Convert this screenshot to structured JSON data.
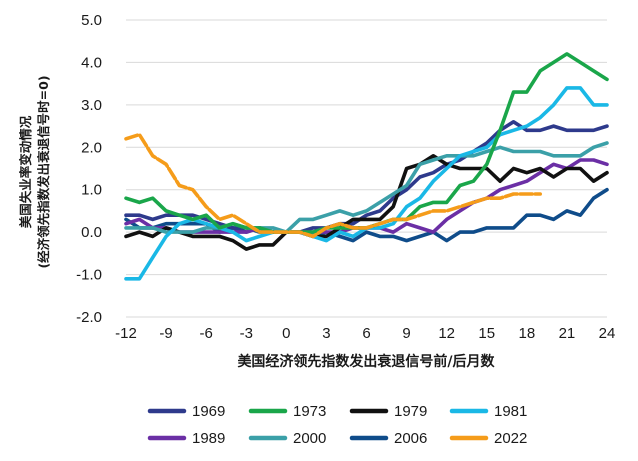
{
  "chart_data": {
    "type": "line",
    "xlabel": "美国经济领先指数发出衰退信号前/后月数",
    "ylabel_line1": "美国失业率变动情况",
    "ylabel_line2": "(经济领先指数发出衰退信号时=0)",
    "xlim": [
      -12,
      24
    ],
    "ylim": [
      -2.0,
      5.0
    ],
    "x_ticks": [
      -12,
      -9,
      -6,
      -3,
      0,
      3,
      6,
      9,
      12,
      15,
      18,
      21,
      24
    ],
    "y_ticks": [
      -2.0,
      -1.0,
      0.0,
      1.0,
      2.0,
      3.0,
      4.0,
      5.0
    ],
    "x_tick_labels": [
      "-12",
      "-9",
      "-6",
      "-3",
      "0",
      "3",
      "6",
      "9",
      "12",
      "15",
      "18",
      "21",
      "24"
    ],
    "y_tick_labels": [
      "-2.0",
      "-1.0",
      "0.0",
      "1.0",
      "2.0",
      "3.0",
      "4.0",
      "5.0"
    ],
    "grid": "horizontal",
    "legend_position": "bottom",
    "x": [
      -12,
      -11,
      -10,
      -9,
      -8,
      -7,
      -6,
      -5,
      -4,
      -3,
      -2,
      -1,
      0,
      1,
      2,
      3,
      4,
      5,
      6,
      7,
      8,
      9,
      10,
      11,
      12,
      13,
      14,
      15,
      16,
      17,
      18,
      19,
      20,
      21,
      22,
      23,
      24
    ],
    "series": [
      {
        "name": "1969",
        "color": "#2e3a8c",
        "values": [
          0.4,
          0.4,
          0.3,
          0.4,
          0.4,
          0.4,
          0.3,
          0.2,
          0.1,
          0.0,
          0.1,
          0.0,
          0.0,
          0.0,
          0.1,
          0.1,
          0.2,
          0.2,
          0.4,
          0.5,
          0.8,
          1.0,
          1.3,
          1.4,
          1.6,
          1.7,
          1.9,
          2.1,
          2.4,
          2.6,
          2.4,
          2.4,
          2.5,
          2.4,
          2.4,
          2.4,
          2.5
        ]
      },
      {
        "name": "1973",
        "color": "#1aa64a",
        "values": [
          0.8,
          0.7,
          0.8,
          0.5,
          0.4,
          0.3,
          0.4,
          0.1,
          0.2,
          0.1,
          0.1,
          0.0,
          0.0,
          0.0,
          0.0,
          0.1,
          0.1,
          0.1,
          0.1,
          0.2,
          0.3,
          0.3,
          0.6,
          0.7,
          0.7,
          1.1,
          1.2,
          1.6,
          2.4,
          3.3,
          3.3,
          3.8,
          4.0,
          4.2,
          4.0,
          3.8,
          3.6
        ]
      },
      {
        "name": "1979",
        "color": "#111111",
        "values": [
          -0.1,
          0.0,
          -0.1,
          0.1,
          0.0,
          -0.1,
          -0.1,
          -0.1,
          -0.2,
          -0.4,
          -0.3,
          -0.3,
          0.0,
          0.0,
          -0.1,
          -0.1,
          0.1,
          0.3,
          0.3,
          0.3,
          0.6,
          1.5,
          1.6,
          1.8,
          1.6,
          1.5,
          1.5,
          1.5,
          1.2,
          1.5,
          1.4,
          1.5,
          1.3,
          1.5,
          1.5,
          1.2,
          1.4
        ]
      },
      {
        "name": "1981",
        "color": "#1ab8e6",
        "values": [
          -1.1,
          -1.1,
          -0.6,
          -0.1,
          0.2,
          0.3,
          0.2,
          0.1,
          0.0,
          -0.2,
          -0.1,
          0.0,
          0.0,
          0.0,
          -0.1,
          -0.2,
          0.0,
          -0.1,
          0.1,
          0.1,
          0.2,
          0.6,
          0.8,
          1.2,
          1.5,
          1.8,
          1.9,
          2.0,
          2.3,
          2.4,
          2.5,
          2.7,
          3.0,
          3.4,
          3.4,
          3.0,
          3.0
        ]
      },
      {
        "name": "1989",
        "color": "#6b2fa5",
        "values": [
          0.2,
          0.3,
          0.1,
          0.1,
          0.0,
          0.0,
          0.0,
          0.0,
          0.0,
          0.0,
          0.1,
          0.0,
          0.0,
          0.0,
          0.0,
          0.0,
          0.0,
          0.1,
          0.1,
          0.1,
          0.0,
          0.2,
          0.1,
          0.0,
          0.3,
          0.5,
          0.7,
          0.8,
          1.0,
          1.1,
          1.2,
          1.4,
          1.6,
          1.5,
          1.7,
          1.7,
          1.6
        ]
      },
      {
        "name": "2000",
        "color": "#3ba0a8",
        "values": [
          0.1,
          0.1,
          0.1,
          0.0,
          0.0,
          0.0,
          0.1,
          0.1,
          0.2,
          0.1,
          0.1,
          0.1,
          0.0,
          0.3,
          0.3,
          0.4,
          0.5,
          0.4,
          0.5,
          0.7,
          0.9,
          1.1,
          1.6,
          1.7,
          1.8,
          1.8,
          1.8,
          1.9,
          2.0,
          1.9,
          1.9,
          1.9,
          1.8,
          1.8,
          1.8,
          2.0,
          2.1
        ]
      },
      {
        "name": "2006",
        "color": "#0f4c8a",
        "values": [
          0.3,
          0.1,
          0.1,
          0.2,
          0.2,
          0.2,
          0.2,
          0.0,
          0.1,
          0.1,
          0.0,
          0.0,
          0.0,
          0.0,
          -0.1,
          0.0,
          -0.1,
          -0.2,
          0.0,
          -0.1,
          -0.1,
          -0.2,
          -0.1,
          0.0,
          -0.2,
          0.0,
          0.0,
          0.1,
          0.1,
          0.1,
          0.4,
          0.4,
          0.3,
          0.5,
          0.4,
          0.8,
          1.0
        ]
      },
      {
        "name": "2022",
        "color": "#f59c1a",
        "values": [
          2.2,
          2.3,
          1.8,
          1.6,
          1.1,
          1.0,
          0.6,
          0.3,
          0.4,
          0.2,
          0.0,
          0.0,
          0.0,
          0.0,
          -0.1,
          0.1,
          0.2,
          0.1,
          0.1,
          0.2,
          0.3,
          0.3,
          0.4,
          0.5,
          0.5,
          0.6,
          0.7,
          0.8,
          0.8,
          0.9,
          0.9,
          0.9,
          null,
          null,
          null,
          null,
          null
        ]
      }
    ]
  }
}
